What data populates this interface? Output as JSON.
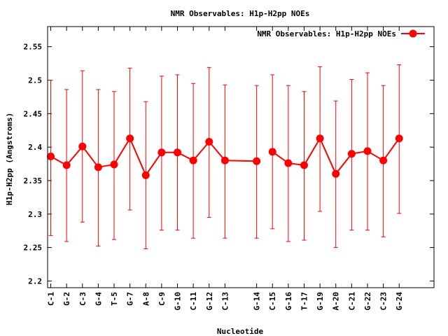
{
  "chart_data": {
    "type": "line",
    "title": "NMR Observables: H1p-H2pp NOEs",
    "xlabel": "Nucleotide",
    "ylabel": "H1p-H2pp (Angstroms)",
    "ylim": [
      2.19,
      2.58
    ],
    "yticks": [
      2.2,
      2.25,
      2.3,
      2.35,
      2.4,
      2.45,
      2.5,
      2.55
    ],
    "ytick_labels": [
      "2.2",
      "2.25",
      "2.3",
      "2.35",
      "2.4",
      "2.45",
      "2.5",
      "2.55"
    ],
    "xlim": [
      0.8,
      25.2
    ],
    "grid": false,
    "legend": "top-right",
    "series": [
      {
        "name": "NMR Observables: H1p-H2pp NOEs",
        "color": "#ff0000",
        "segments": [
          [
            0,
            12
          ],
          [
            13,
            23
          ]
        ],
        "points": [
          {
            "label": "C-1",
            "x": 1,
            "y": 2.386,
            "lo": 2.268,
            "hi": 2.5
          },
          {
            "label": "G-2",
            "x": 2,
            "y": 2.373,
            "lo": 2.259,
            "hi": 2.486
          },
          {
            "label": "C-3",
            "x": 3,
            "y": 2.401,
            "lo": 2.288,
            "hi": 2.514
          },
          {
            "label": "G-4",
            "x": 4,
            "y": 2.37,
            "lo": 2.252,
            "hi": 2.486
          },
          {
            "label": "T-5",
            "x": 5,
            "y": 2.374,
            "lo": 2.262,
            "hi": 2.483
          },
          {
            "label": "G-7",
            "x": 6,
            "y": 2.413,
            "lo": 2.306,
            "hi": 2.518
          },
          {
            "label": "A-8",
            "x": 7,
            "y": 2.358,
            "lo": 2.248,
            "hi": 2.468
          },
          {
            "label": "C-9",
            "x": 8,
            "y": 2.392,
            "lo": 2.276,
            "hi": 2.506
          },
          {
            "label": "G-10",
            "x": 9,
            "y": 2.392,
            "lo": 2.276,
            "hi": 2.508
          },
          {
            "label": "C-11",
            "x": 10,
            "y": 2.38,
            "lo": 2.264,
            "hi": 2.495
          },
          {
            "label": "G-12",
            "x": 11,
            "y": 2.408,
            "lo": 2.295,
            "hi": 2.519
          },
          {
            "label": "C-13",
            "x": 12,
            "y": 2.38,
            "lo": 2.264,
            "hi": 2.493
          },
          {
            "label": "G-14",
            "x": 14,
            "y": 2.379,
            "lo": 2.264,
            "hi": 2.492
          },
          {
            "label": "C-15",
            "x": 15,
            "y": 2.393,
            "lo": 2.278,
            "hi": 2.508
          },
          {
            "label": "G-16",
            "x": 16,
            "y": 2.376,
            "lo": 2.259,
            "hi": 2.492
          },
          {
            "label": "T-17",
            "x": 17,
            "y": 2.373,
            "lo": 2.261,
            "hi": 2.483
          },
          {
            "label": "G-19",
            "x": 18,
            "y": 2.413,
            "lo": 2.304,
            "hi": 2.52
          },
          {
            "label": "A-20",
            "x": 19,
            "y": 2.36,
            "lo": 2.25,
            "hi": 2.469
          },
          {
            "label": "C-21",
            "x": 20,
            "y": 2.39,
            "lo": 2.276,
            "hi": 2.501
          },
          {
            "label": "G-22",
            "x": 21,
            "y": 2.394,
            "lo": 2.276,
            "hi": 2.511
          },
          {
            "label": "C-23",
            "x": 22,
            "y": 2.38,
            "lo": 2.266,
            "hi": 2.492
          },
          {
            "label": "G-24",
            "x": 23,
            "y": 2.413,
            "lo": 2.301,
            "hi": 2.523
          }
        ]
      }
    ]
  }
}
